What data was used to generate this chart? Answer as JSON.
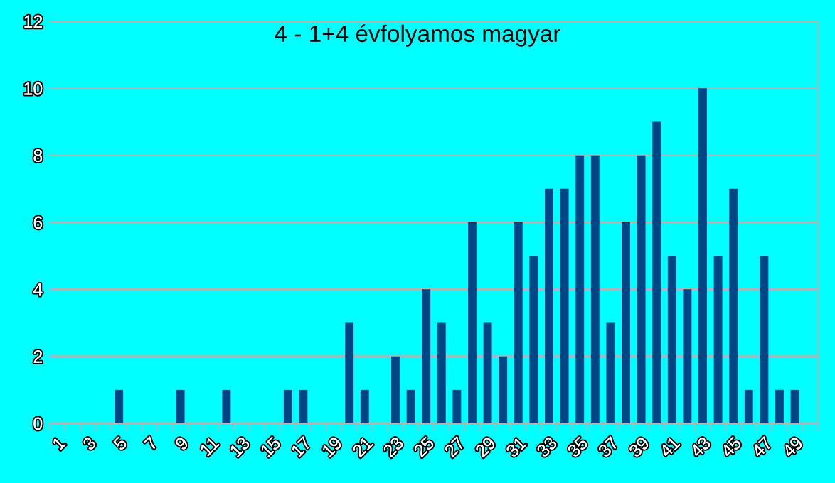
{
  "chart_data": {
    "type": "bar",
    "title": "4 - 1+4 évfolyamos magyar",
    "categories": [
      "1",
      null,
      "3",
      null,
      "5",
      null,
      "7",
      null,
      "9",
      null,
      "11",
      null,
      "13",
      null,
      "15",
      null,
      "17",
      null,
      "19",
      null,
      "21",
      null,
      "23",
      null,
      "25",
      null,
      "27",
      null,
      "29",
      null,
      "31",
      null,
      "33",
      null,
      "35",
      null,
      "37",
      null,
      "39",
      null,
      "41",
      null,
      "43",
      null,
      "45",
      null,
      "47",
      null,
      "49",
      null
    ],
    "values": [
      0,
      0,
      0,
      0,
      1,
      0,
      0,
      0,
      1,
      0,
      0,
      1,
      0,
      0,
      0,
      1,
      1,
      0,
      0,
      3,
      1,
      0,
      2,
      1,
      4,
      3,
      1,
      6,
      3,
      2,
      6,
      5,
      7,
      7,
      8,
      8,
      3,
      6,
      8,
      9,
      5,
      4,
      10,
      5,
      7,
      1,
      5,
      1,
      1,
      0
    ],
    "color": "#004586",
    "ylim": [
      0,
      12
    ],
    "yticks": [
      0,
      2,
      4,
      6,
      8,
      10,
      12
    ],
    "grid": "y"
  }
}
